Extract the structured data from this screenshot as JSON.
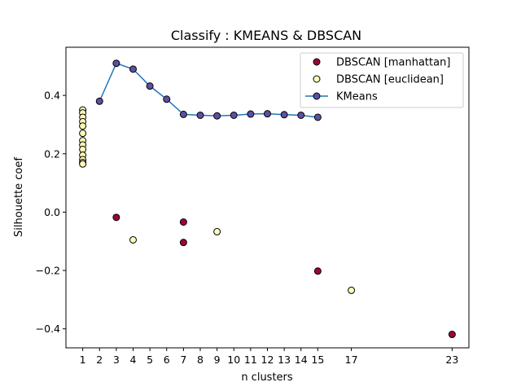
{
  "chart_data": {
    "type": "scatter",
    "title": "Classify : KMEANS & DBSCAN",
    "xlabel": "n clusters",
    "ylabel": "Silhouette coef",
    "xlim": [
      0,
      24
    ],
    "ylim": [
      -0.465,
      0.565
    ],
    "xticks": [
      1,
      2,
      3,
      4,
      5,
      6,
      7,
      8,
      9,
      10,
      11,
      12,
      13,
      14,
      15,
      17,
      23
    ],
    "yticks": [
      -0.4,
      -0.2,
      0.0,
      0.2,
      0.4
    ],
    "ytick_labels": [
      "−0.4",
      "−0.2",
      "0.0",
      "0.2",
      "0.4"
    ],
    "grid": false,
    "legend_position": "top-right",
    "series": [
      {
        "name": "DBSCAN [manhattan]",
        "kind": "scatter",
        "color": "#9e0142",
        "x": [
          3,
          7,
          7,
          15,
          23
        ],
        "y": [
          -0.018,
          -0.034,
          -0.104,
          -0.202,
          -0.419
        ]
      },
      {
        "name": "DBSCAN [euclidean]",
        "kind": "scatter",
        "color": "#fdf9b8",
        "x": [
          1,
          1,
          1,
          1,
          1,
          1,
          1,
          1,
          1,
          1,
          1,
          1,
          1,
          4,
          9,
          17
        ],
        "y": [
          0.35,
          0.34,
          0.325,
          0.31,
          0.295,
          0.27,
          0.245,
          0.23,
          0.215,
          0.195,
          0.18,
          0.17,
          0.165,
          -0.095,
          -0.067,
          -0.268
        ]
      },
      {
        "name": "KMeans",
        "kind": "line",
        "color": "#1f77b4",
        "marker_color": "#5e4fa2",
        "x": [
          2,
          3,
          4,
          5,
          6,
          7,
          8,
          9,
          10,
          11,
          12,
          13,
          14,
          15
        ],
        "y": [
          0.38,
          0.51,
          0.49,
          0.432,
          0.387,
          0.335,
          0.332,
          0.33,
          0.332,
          0.336,
          0.337,
          0.334,
          0.332,
          0.325
        ]
      }
    ]
  }
}
